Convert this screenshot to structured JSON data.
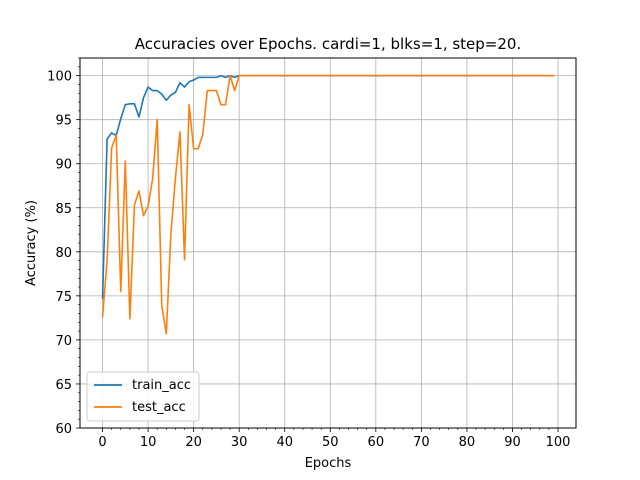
{
  "chart_data": {
    "type": "line",
    "title": "Accuracies over Epochs. cardi=1, blks=1, step=20.",
    "xlabel": "Epochs",
    "ylabel": "Accuracy (%)",
    "xlim": [
      -4.95,
      103.95
    ],
    "ylim": [
      60,
      102
    ],
    "xticks": [
      0,
      10,
      20,
      30,
      40,
      50,
      60,
      70,
      80,
      90,
      100
    ],
    "yticks": [
      60,
      65,
      70,
      75,
      80,
      85,
      90,
      95,
      100
    ],
    "x_minor_step": 2,
    "y_minor_step": 1,
    "grid": true,
    "legend_position": "lower-left",
    "series": [
      {
        "name": "train_acc",
        "color": "#1f77b4",
        "x": [
          0,
          1,
          2,
          3,
          4,
          5,
          6,
          7,
          8,
          9,
          10,
          11,
          12,
          13,
          14,
          15,
          16,
          17,
          18,
          19,
          20,
          21,
          22,
          23,
          24,
          25,
          26,
          27,
          28,
          29,
          30,
          99
        ],
        "values": [
          74.7,
          92.8,
          93.5,
          93.2,
          95.1,
          96.7,
          96.8,
          96.8,
          95.3,
          97.5,
          98.7,
          98.3,
          98.3,
          97.9,
          97.2,
          97.8,
          98.1,
          99.2,
          98.7,
          99.3,
          99.5,
          99.8,
          99.8,
          99.8,
          99.8,
          99.8,
          100.0,
          99.8,
          100.0,
          99.8,
          100.0,
          100.0
        ]
      },
      {
        "name": "test_acc",
        "color": "#ff7f0e",
        "x": [
          0,
          1,
          2,
          3,
          4,
          5,
          6,
          7,
          8,
          9,
          10,
          11,
          12,
          13,
          14,
          15,
          16,
          17,
          18,
          19,
          20,
          21,
          22,
          23,
          24,
          25,
          26,
          27,
          28,
          29,
          30,
          99
        ],
        "values": [
          72.6,
          79.0,
          91.8,
          93.2,
          75.5,
          90.3,
          72.4,
          85.3,
          86.9,
          84.1,
          85.2,
          88.3,
          95.0,
          73.9,
          70.7,
          82.0,
          88.4,
          93.6,
          79.1,
          96.7,
          91.7,
          91.7,
          93.3,
          98.3,
          98.3,
          98.3,
          96.7,
          96.7,
          100.0,
          98.3,
          100.0,
          100.0
        ]
      }
    ]
  }
}
